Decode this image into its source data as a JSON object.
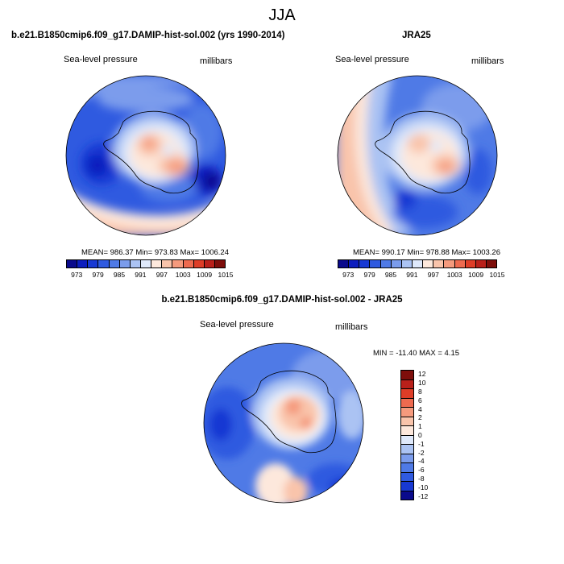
{
  "title": "JJA",
  "colors": {
    "scale15": [
      "#0a0a8c",
      "#0d1ebe",
      "#1839d3",
      "#2f5ae0",
      "#4f7ae6",
      "#7b9cec",
      "#abc3f3",
      "#dfe9fb",
      "#fde8dc",
      "#f9c4ab",
      "#f59a7d",
      "#ee6a4f",
      "#de3d27",
      "#b9201a",
      "#7e0e0b"
    ],
    "diff14": [
      "#7e0e0b",
      "#b9201a",
      "#de3d27",
      "#ee6a4f",
      "#f59a7d",
      "#f9c4ab",
      "#fde8dc",
      "#dfe9fb",
      "#abc3f3",
      "#7b9cec",
      "#4f7ae6",
      "#2f5ae0",
      "#1839d3",
      "#0a0a8c"
    ]
  },
  "panels": {
    "model": {
      "title": "b.e21.B1850cmip6.f09_g17.DAMIP-hist-sol.002 (yrs 1990-2014)",
      "left_label": "Sea-level pressure",
      "right_label": "millibars",
      "stats": "MEAN= 986.37   Min= 973.83   Max= 1006.24",
      "ticks": [
        "973",
        "979",
        "985",
        "991",
        "997",
        "1003",
        "1009",
        "1015"
      ]
    },
    "obs": {
      "title": "JRA25",
      "left_label": "Sea-level pressure",
      "right_label": "millibars",
      "stats": "MEAN= 990.17   Min= 978.88   Max= 1003.26",
      "ticks": [
        "973",
        "979",
        "985",
        "991",
        "997",
        "1003",
        "1009",
        "1015"
      ]
    },
    "diff": {
      "title": "b.e21.B1850cmip6.f09_g17.DAMIP-hist-sol.002 - JRA25",
      "left_label": "Sea-level pressure",
      "right_label": "millibars",
      "stats": "MIN = -11.40 MAX =   4.15",
      "ticks": [
        "12",
        "10",
        "8",
        "6",
        "4",
        "2",
        "1",
        "0",
        "-1",
        "-2",
        "-4",
        "-6",
        "-8",
        "-10",
        "-12"
      ]
    }
  }
}
